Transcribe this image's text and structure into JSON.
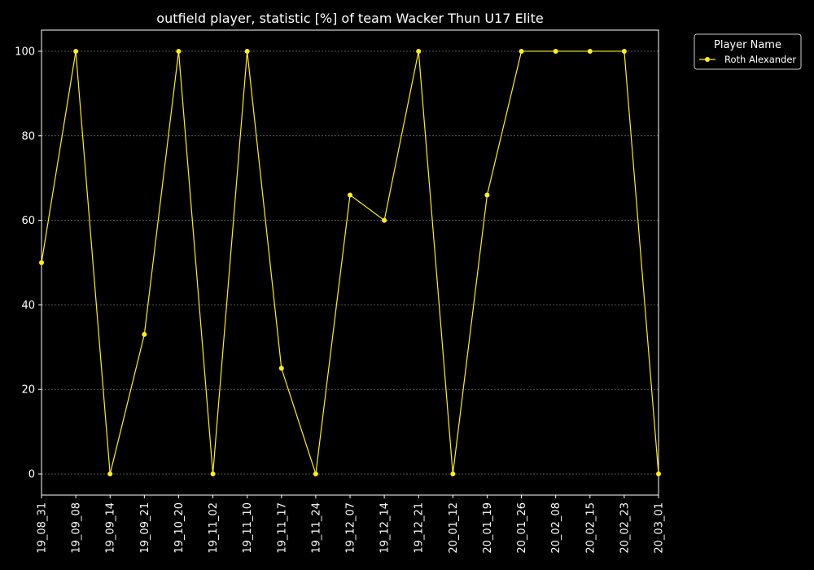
{
  "chart_data": {
    "type": "line",
    "title": "outfield player, statistic [%] of team Wacker Thun U17 Elite",
    "xlabel": "",
    "ylabel": "",
    "categories": [
      "19_08_31",
      "19_09_08",
      "19_09_14",
      "19_09_21",
      "19_10_20",
      "19_11_02",
      "19_11_10",
      "19_11_17",
      "19_11_24",
      "19_12_07",
      "19_12_14",
      "19_12_21",
      "20_01_12",
      "20_01_19",
      "20_01_26",
      "20_02_08",
      "20_02_15",
      "20_02_23",
      "20_03_01"
    ],
    "series": [
      {
        "name": "Roth Alexander",
        "color": "#ffed29",
        "values": [
          50,
          100,
          0,
          33,
          100,
          0,
          100,
          25,
          0,
          66,
          60,
          100,
          0,
          66,
          100,
          100,
          100,
          100,
          0
        ]
      }
    ],
    "ylim": [
      -5,
      105
    ],
    "yticks": [
      0,
      20,
      40,
      60,
      80,
      100
    ],
    "grid": "horizontal-dashed",
    "legend": {
      "title": "Player Name",
      "placement": "outside-top-right"
    },
    "colors": {
      "background": "#000000",
      "axes": "#ffffff",
      "grid": "#888888"
    }
  }
}
